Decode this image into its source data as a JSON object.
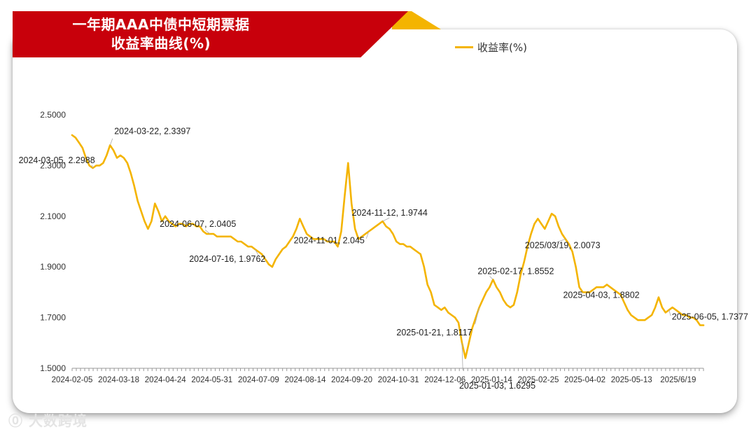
{
  "title_line1": "一年期AAA中债中短期票据",
  "title_line2": "收益率曲线(%)",
  "watermark": "大数跨境",
  "colors": {
    "line": "#f4b400",
    "banner": "#c8000b"
  },
  "chart_data": {
    "type": "line",
    "ylim": [
      1.5,
      2.5
    ],
    "yticks": [
      "2.5000",
      "2.3000",
      "2.1000",
      "1.9000",
      "1.7000",
      "1.5000"
    ],
    "ytick_values": [
      2.5,
      2.3,
      2.1,
      1.9,
      1.7,
      1.5
    ],
    "xtick_labels": [
      "2024-02-05",
      "2024-03-18",
      "2024-04-24",
      "2024-05-31",
      "2024-07-09",
      "2024-08-14",
      "2024-09-20",
      "2024-10-31",
      "2024-12-06",
      "2025-01-14",
      "2025-02-25",
      "2025-04-02",
      "2025-05-13",
      "2025/6/19"
    ],
    "legend": "top-right",
    "series": [
      {
        "name": "收益率(%)",
        "values": [
          2.42,
          2.41,
          2.39,
          2.37,
          2.33,
          2.3,
          2.29,
          2.3,
          2.3,
          2.31,
          2.34,
          2.38,
          2.36,
          2.33,
          2.34,
          2.33,
          2.31,
          2.27,
          2.22,
          2.16,
          2.12,
          2.08,
          2.05,
          2.08,
          2.15,
          2.12,
          2.08,
          2.1,
          2.08,
          2.07,
          2.06,
          2.07,
          2.07,
          2.06,
          2.07,
          2.07,
          2.06,
          2.06,
          2.04,
          2.03,
          2.03,
          2.03,
          2.02,
          2.02,
          2.02,
          2.02,
          2.02,
          2.01,
          2.0,
          2.0,
          1.99,
          1.98,
          1.98,
          1.97,
          1.96,
          1.95,
          1.93,
          1.91,
          1.9,
          1.93,
          1.95,
          1.97,
          1.98,
          2.0,
          2.02,
          2.05,
          2.09,
          2.06,
          2.03,
          2.02,
          2.01,
          2.01,
          2.01,
          2.01,
          2.0,
          2.0,
          2.0,
          1.98,
          2.04,
          2.18,
          2.31,
          2.15,
          2.05,
          2.01,
          2.02,
          2.03,
          2.04,
          2.05,
          2.06,
          2.07,
          2.08,
          2.06,
          2.05,
          2.03,
          2.0,
          1.99,
          1.99,
          1.98,
          1.98,
          1.97,
          1.96,
          1.95,
          1.9,
          1.83,
          1.8,
          1.75,
          1.74,
          1.73,
          1.74,
          1.72,
          1.71,
          1.7,
          1.68,
          1.6,
          1.54,
          1.6,
          1.66,
          1.7,
          1.74,
          1.77,
          1.8,
          1.82,
          1.85,
          1.82,
          1.8,
          1.77,
          1.75,
          1.74,
          1.75,
          1.8,
          1.87,
          1.92,
          1.98,
          2.03,
          2.07,
          2.09,
          2.07,
          2.05,
          2.08,
          2.11,
          2.1,
          2.06,
          2.03,
          2.01,
          1.99,
          1.96,
          1.9,
          1.82,
          1.8,
          1.8,
          1.8,
          1.81,
          1.82,
          1.82,
          1.82,
          1.83,
          1.82,
          1.81,
          1.8,
          1.79,
          1.76,
          1.73,
          1.71,
          1.7,
          1.69,
          1.69,
          1.69,
          1.7,
          1.71,
          1.74,
          1.78,
          1.74,
          1.72,
          1.73,
          1.74,
          1.73,
          1.72,
          1.71,
          1.71,
          1.7,
          1.7,
          1.69,
          1.67,
          1.67
        ]
      }
    ],
    "annotations": [
      {
        "text": "2024-03-05, 2.2988",
        "index": 6
      },
      {
        "text": "2024-03-22, 2.3397",
        "index": 11
      },
      {
        "text": "2024-06-07, 2.0405",
        "index": 40
      },
      {
        "text": "2024-07-16, 1.9762",
        "index": 53
      },
      {
        "text": "2024-11-01, 2.045",
        "index": 86
      },
      {
        "text": "2024-11-12, 1.9744",
        "index": 90
      },
      {
        "text": "2025-01-03, 1.6295",
        "index": 113
      },
      {
        "text": "2025-01-21, 1.8117",
        "index": 118
      },
      {
        "text": "2025-02-17, 1.8552",
        "index": 122
      },
      {
        "text": "2025/03/19, 2.0073",
        "index": 143
      },
      {
        "text": "2025-04-03, 1.8802",
        "index": 148
      },
      {
        "text": "2025-06-05, 1.7377",
        "index": 173
      }
    ]
  }
}
